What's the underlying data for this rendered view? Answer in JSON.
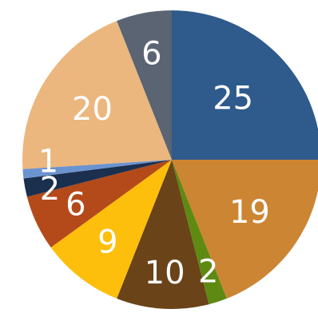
{
  "chart_data": {
    "type": "pie",
    "title": "",
    "legend": "none",
    "slices": [
      {
        "value": 25,
        "label": "25",
        "color": "#2E5A8C"
      },
      {
        "value": 19,
        "label": "19",
        "color": "#CC8533"
      },
      {
        "value": 2,
        "label": "2",
        "color": "#5E8A12"
      },
      {
        "value": 10,
        "label": "10",
        "color": "#6A4319"
      },
      {
        "value": 9,
        "label": "9",
        "color": "#FDBE0C"
      },
      {
        "value": 6,
        "label": "6",
        "color": "#B44A1A"
      },
      {
        "value": 2,
        "label": "2",
        "color": "#1B2F4E"
      },
      {
        "value": 1,
        "label": "1",
        "color": "#6B93CF"
      },
      {
        "value": 20,
        "label": "20",
        "color": "#EBB77E"
      },
      {
        "value": 6,
        "label": "6",
        "color": "#5A6472"
      }
    ]
  }
}
